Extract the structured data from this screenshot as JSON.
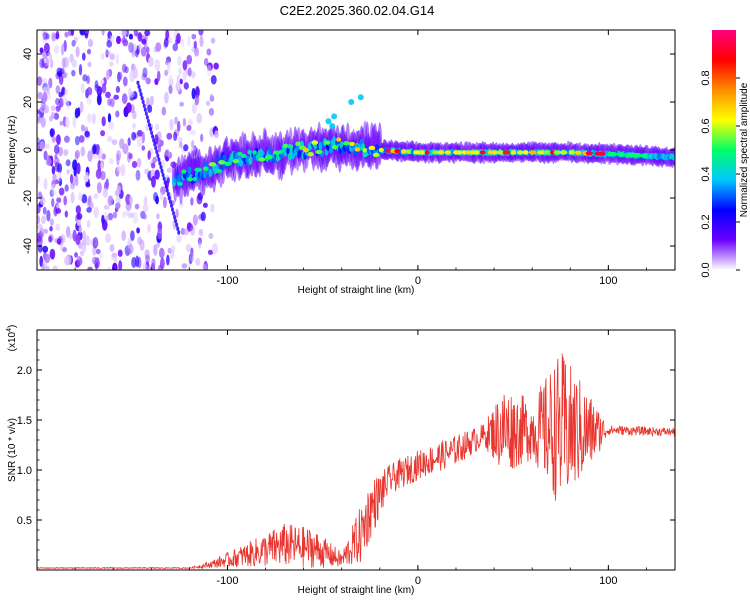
{
  "title": "C2E2.2025.360.02.04.G14",
  "chart_data": [
    {
      "type": "heatmap",
      "name": "spectrogram",
      "xlabel": "Height of straight line (km)",
      "ylabel": "Frequency (Hz)",
      "xlim": [
        -200,
        135
      ],
      "ylim": [
        -50,
        50
      ],
      "x_ticks": [
        -100,
        0,
        100
      ],
      "y_ticks": [
        -40,
        -20,
        0,
        20,
        40
      ],
      "colorbar": {
        "label": "Normalized spectral amplitude",
        "range": [
          0,
          1
        ],
        "ticks": [
          "0.0",
          "0.2",
          "0.4",
          "0.6",
          "0.8"
        ],
        "colors": [
          "#ffffff",
          "#6a00ff",
          "#0000ff",
          "#00c8ff",
          "#00ff66",
          "#ffff00",
          "#ff8c00",
          "#ff0000",
          "#ff0080"
        ]
      },
      "ridge": [
        {
          "x": -125,
          "freq": -12
        },
        {
          "x": -110,
          "freq": -8
        },
        {
          "x": -100,
          "freq": -4
        },
        {
          "x": -80,
          "freq": -2
        },
        {
          "x": -60,
          "freq": 0
        },
        {
          "x": -40,
          "freq": 2
        },
        {
          "x": -20,
          "freq": 0
        },
        {
          "x": 0,
          "freq": -1
        },
        {
          "x": 40,
          "freq": -1
        },
        {
          "x": 80,
          "freq": -1
        },
        {
          "x": 110,
          "freq": -2
        },
        {
          "x": 135,
          "freq": -3
        }
      ],
      "noise_region_x": [
        -200,
        -105
      ]
    },
    {
      "type": "line",
      "name": "snr",
      "xlabel": "Height of straight line (km)",
      "ylabel": "SNR (10 * v/v)",
      "y_scale_label": "(x10",
      "y_scale_exp": "4",
      "xlim": [
        -200,
        135
      ],
      "ylim": [
        0,
        2.4
      ],
      "x_ticks": [
        -100,
        0,
        100
      ],
      "y_ticks": [
        "0.5",
        "1.0",
        "1.5",
        "2.0"
      ],
      "line_color": "#e8352e",
      "envelope": [
        {
          "x": -200,
          "mean": 0.02,
          "spread": 0.005
        },
        {
          "x": -120,
          "mean": 0.02,
          "spread": 0.005
        },
        {
          "x": -110,
          "mean": 0.05,
          "spread": 0.03
        },
        {
          "x": -90,
          "mean": 0.15,
          "spread": 0.12
        },
        {
          "x": -70,
          "mean": 0.25,
          "spread": 0.22
        },
        {
          "x": -55,
          "mean": 0.22,
          "spread": 0.2
        },
        {
          "x": -40,
          "mean": 0.1,
          "spread": 0.08
        },
        {
          "x": -30,
          "mean": 0.35,
          "spread": 0.3
        },
        {
          "x": -25,
          "mean": 0.6,
          "spread": 0.3
        },
        {
          "x": -15,
          "mean": 0.9,
          "spread": 0.15
        },
        {
          "x": 0,
          "mean": 1.05,
          "spread": 0.15
        },
        {
          "x": 20,
          "mean": 1.2,
          "spread": 0.15
        },
        {
          "x": 35,
          "mean": 1.35,
          "spread": 0.12
        },
        {
          "x": 45,
          "mean": 1.4,
          "spread": 0.45
        },
        {
          "x": 60,
          "mean": 1.4,
          "spread": 0.3
        },
        {
          "x": 75,
          "mean": 1.4,
          "spread": 0.8
        },
        {
          "x": 90,
          "mean": 1.38,
          "spread": 0.4
        },
        {
          "x": 100,
          "mean": 1.4,
          "spread": 0.05
        },
        {
          "x": 135,
          "mean": 1.38,
          "spread": 0.04
        }
      ]
    }
  ]
}
